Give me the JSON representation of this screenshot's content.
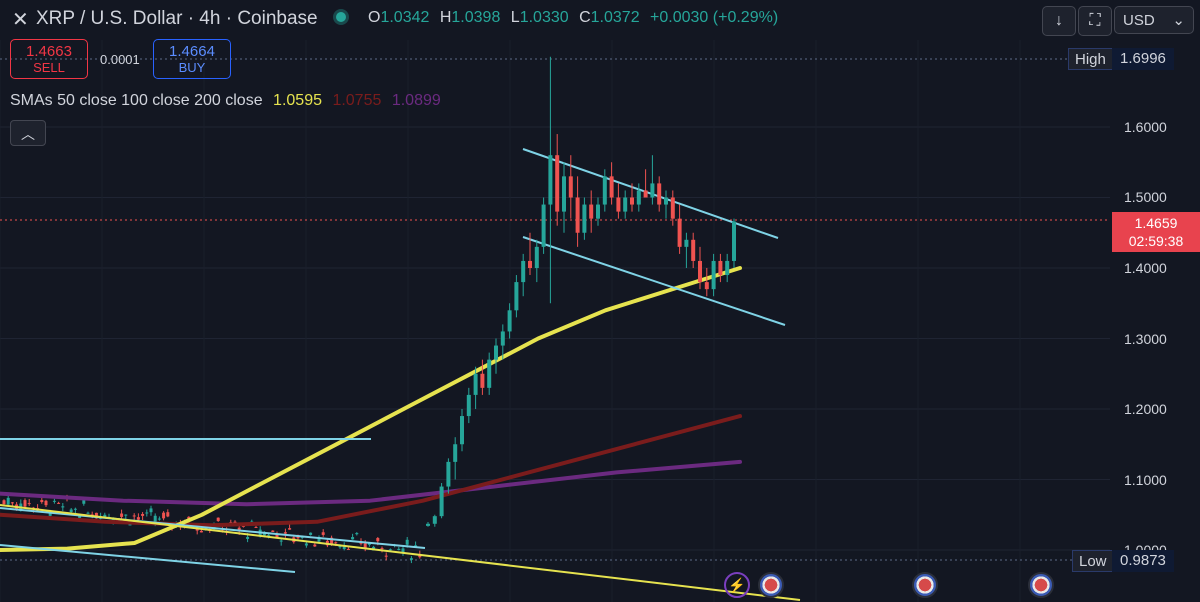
{
  "header": {
    "symbol_title": "XRP / U.S. Dollar · 4h · Coinbase",
    "ohlc": {
      "o_label": "O",
      "o_value": "1.0342",
      "h_label": "H",
      "h_value": "1.0398",
      "l_label": "L",
      "l_value": "1.0330",
      "c_label": "C",
      "c_value": "1.0372",
      "change": "+0.0030 (+0.29%)"
    },
    "currency": "USD",
    "icons": [
      "close-icon",
      "status-dot-icon",
      "download-arrow-icon",
      "fullscreen-icon",
      "chevron-down-icon"
    ]
  },
  "trade": {
    "sell_price": "1.4663",
    "sell_label": "SELL",
    "spread": "0.0001",
    "buy_price": "1.4664",
    "buy_label": "BUY"
  },
  "indicators": {
    "label": "SMAs 50 close 100 close 200 close",
    "sma50": "1.0595",
    "sma100": "1.0755",
    "sma200": "1.0899",
    "colors": {
      "sma50": "#e6e34f",
      "sma100": "#7a1c1c",
      "sma200": "#6b2a80"
    }
  },
  "price_scale": {
    "ticks": [
      "1.6000",
      "1.5000",
      "1.4000",
      "1.3000",
      "1.2000",
      "1.1000",
      "1.0000"
    ],
    "high_label": "High",
    "high_value": "1.6996",
    "low_label": "Low",
    "low_value": "0.9873",
    "last_price": "1.4659",
    "countdown": "02:59:38"
  },
  "colors": {
    "up": "#26a69a",
    "down": "#ef5350",
    "trendline": "#7fd3e6",
    "background": "#131722"
  },
  "chart_data": {
    "type": "candlestick",
    "title": "XRP / U.S. Dollar · 4h · Coinbase",
    "ylim": [
      0.98,
      1.72
    ],
    "grid": true,
    "pre_breakout_range": {
      "approx_candles": 100,
      "low": 0.99,
      "high": 1.07
    },
    "candles": [
      [
        1.0342,
        1.0398,
        1.033,
        1.0372
      ],
      [
        1.0372,
        1.05,
        1.033,
        1.048
      ],
      [
        1.048,
        1.095,
        1.045,
        1.09
      ],
      [
        1.09,
        1.13,
        1.08,
        1.125
      ],
      [
        1.125,
        1.16,
        1.1,
        1.15
      ],
      [
        1.15,
        1.2,
        1.14,
        1.19
      ],
      [
        1.19,
        1.23,
        1.18,
        1.22
      ],
      [
        1.22,
        1.26,
        1.2,
        1.25
      ],
      [
        1.25,
        1.27,
        1.22,
        1.23
      ],
      [
        1.23,
        1.28,
        1.22,
        1.27
      ],
      [
        1.27,
        1.3,
        1.25,
        1.29
      ],
      [
        1.29,
        1.32,
        1.27,
        1.31
      ],
      [
        1.31,
        1.35,
        1.3,
        1.34
      ],
      [
        1.34,
        1.39,
        1.33,
        1.38
      ],
      [
        1.38,
        1.42,
        1.36,
        1.41
      ],
      [
        1.41,
        1.45,
        1.39,
        1.4
      ],
      [
        1.4,
        1.44,
        1.38,
        1.43
      ],
      [
        1.43,
        1.5,
        1.42,
        1.49
      ],
      [
        1.49,
        1.6996,
        1.35,
        1.56
      ],
      [
        1.56,
        1.59,
        1.46,
        1.48
      ],
      [
        1.48,
        1.55,
        1.45,
        1.53
      ],
      [
        1.53,
        1.56,
        1.47,
        1.5
      ],
      [
        1.5,
        1.53,
        1.43,
        1.45
      ],
      [
        1.45,
        1.5,
        1.44,
        1.49
      ],
      [
        1.49,
        1.51,
        1.45,
        1.47
      ],
      [
        1.47,
        1.5,
        1.46,
        1.49
      ],
      [
        1.49,
        1.54,
        1.48,
        1.53
      ],
      [
        1.53,
        1.55,
        1.49,
        1.5
      ],
      [
        1.5,
        1.52,
        1.47,
        1.48
      ],
      [
        1.48,
        1.51,
        1.47,
        1.5
      ],
      [
        1.5,
        1.52,
        1.48,
        1.49
      ],
      [
        1.49,
        1.52,
        1.48,
        1.51
      ],
      [
        1.51,
        1.54,
        1.5,
        1.5
      ],
      [
        1.5,
        1.56,
        1.49,
        1.52
      ],
      [
        1.52,
        1.53,
        1.48,
        1.49
      ],
      [
        1.49,
        1.51,
        1.47,
        1.5
      ],
      [
        1.5,
        1.51,
        1.46,
        1.47
      ],
      [
        1.47,
        1.49,
        1.42,
        1.43
      ],
      [
        1.43,
        1.45,
        1.4,
        1.44
      ],
      [
        1.44,
        1.45,
        1.4,
        1.41
      ],
      [
        1.41,
        1.43,
        1.37,
        1.38
      ],
      [
        1.38,
        1.4,
        1.36,
        1.37
      ],
      [
        1.37,
        1.42,
        1.36,
        1.41
      ],
      [
        1.41,
        1.42,
        1.38,
        1.39
      ],
      [
        1.39,
        1.42,
        1.38,
        1.41
      ],
      [
        1.41,
        1.47,
        1.4,
        1.4659
      ]
    ],
    "sma50": [
      1.0,
      1.002,
      1.01,
      1.05,
      1.1,
      1.15,
      1.2,
      1.25,
      1.3,
      1.34,
      1.37,
      1.4
    ],
    "sma100": [
      1.05,
      1.04,
      1.035,
      1.04,
      1.07,
      1.11,
      1.15,
      1.19
    ],
    "sma200": [
      1.08,
      1.07,
      1.065,
      1.07,
      1.09,
      1.11,
      1.125
    ]
  }
}
